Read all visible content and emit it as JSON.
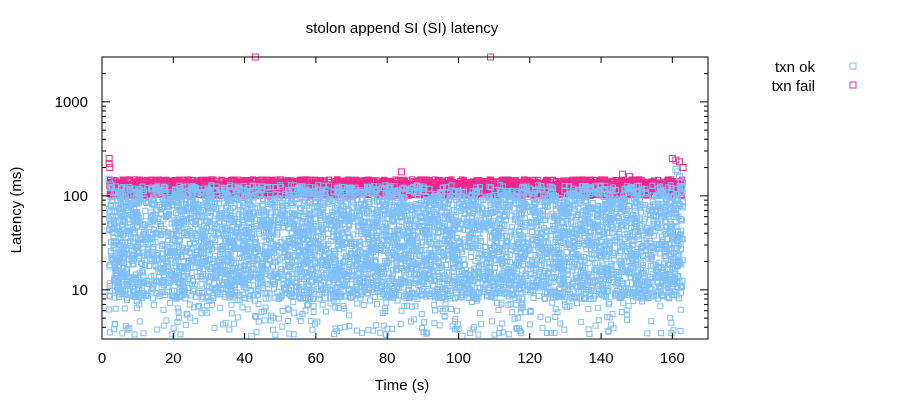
{
  "chart_data": {
    "type": "scatter",
    "title": "stolon append SI (SI)  latency",
    "xlabel": "Time (s)",
    "ylabel": "Latency (ms)",
    "xlim": [
      0,
      170
    ],
    "ylim": [
      3,
      3000
    ],
    "y_scale": "log",
    "x_ticks": [
      "0",
      "20",
      "40",
      "60",
      "80",
      "100",
      "120",
      "140",
      "160"
    ],
    "y_ticks": [
      "10",
      "100",
      "1000"
    ],
    "legend_position": "outside-top-right",
    "grid": false,
    "series": [
      {
        "name": "txn ok",
        "color": "#7fbff7",
        "marker": "open-square",
        "dense_band": {
          "x_range": [
            2,
            163
          ],
          "y_range": [
            8,
            130
          ]
        },
        "sparse_low_band": {
          "x_range": [
            2,
            163
          ],
          "y_range": [
            3.3,
            8
          ]
        },
        "points": [
          [
            2,
            150
          ],
          [
            2.5,
            130
          ],
          [
            42,
            3.2
          ],
          [
            101,
            3.2
          ],
          [
            161,
            190
          ],
          [
            161.5,
            180
          ],
          [
            162,
            160
          ],
          [
            162.5,
            140
          ]
        ]
      },
      {
        "name": "txn fail",
        "color": "#f0288c",
        "marker": "open-square",
        "dense_band": {
          "x_range": [
            2,
            163
          ],
          "y_range": [
            100,
            150
          ]
        },
        "points": [
          [
            2,
            250
          ],
          [
            2,
            220
          ],
          [
            2.2,
            200
          ],
          [
            43,
            3000
          ],
          [
            109,
            3000
          ],
          [
            84,
            180
          ],
          [
            146,
            170
          ],
          [
            148,
            160
          ],
          [
            160,
            250
          ],
          [
            161,
            240
          ],
          [
            162,
            230
          ],
          [
            163,
            200
          ]
        ]
      }
    ]
  }
}
